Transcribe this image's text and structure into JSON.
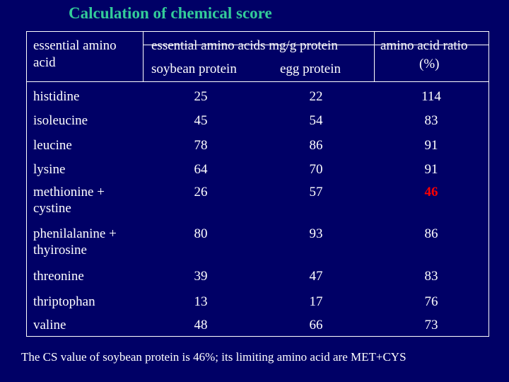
{
  "title": "Calculation of chemical score",
  "headers": {
    "col1": [
      "essential amino",
      "acid"
    ],
    "col2": "essential amino acids mg/g protein",
    "col2_sub1": "soybean protein",
    "col2_sub2": "egg protein",
    "col3": [
      "amino acid ratio",
      "(%)"
    ]
  },
  "rows": [
    {
      "name": [
        "histidine"
      ],
      "soybean": "25",
      "egg": "22",
      "ratio": "114"
    },
    {
      "name": [
        "isoleucine"
      ],
      "soybean": "45",
      "egg": "54",
      "ratio": "83"
    },
    {
      "name": [
        "leucine"
      ],
      "soybean": "78",
      "egg": "86",
      "ratio": "91"
    },
    {
      "name": [
        "lysine"
      ],
      "soybean": "64",
      "egg": "70",
      "ratio": "91"
    },
    {
      "name": [
        "methionine +",
        "cystine"
      ],
      "soybean": "26",
      "egg": "57",
      "ratio": "46"
    },
    {
      "name": [
        "phenilalanine +",
        "thyirosine"
      ],
      "soybean": "80",
      "egg": "93",
      "ratio": "86"
    },
    {
      "name": [
        "threonine"
      ],
      "soybean": "39",
      "egg": "47",
      "ratio": "83"
    },
    {
      "name": [
        "thriptophan"
      ],
      "soybean": "13",
      "egg": "17",
      "ratio": "76"
    },
    {
      "name": [
        "valine"
      ],
      "soybean": "48",
      "egg": "66",
      "ratio": "73"
    }
  ],
  "highlight_color": "#ff0000",
  "title_color": "#33cc99",
  "background_color": "#000066",
  "note": "The CS value of soybean protein is 46%; its limiting amino acid are MET+CYS"
}
